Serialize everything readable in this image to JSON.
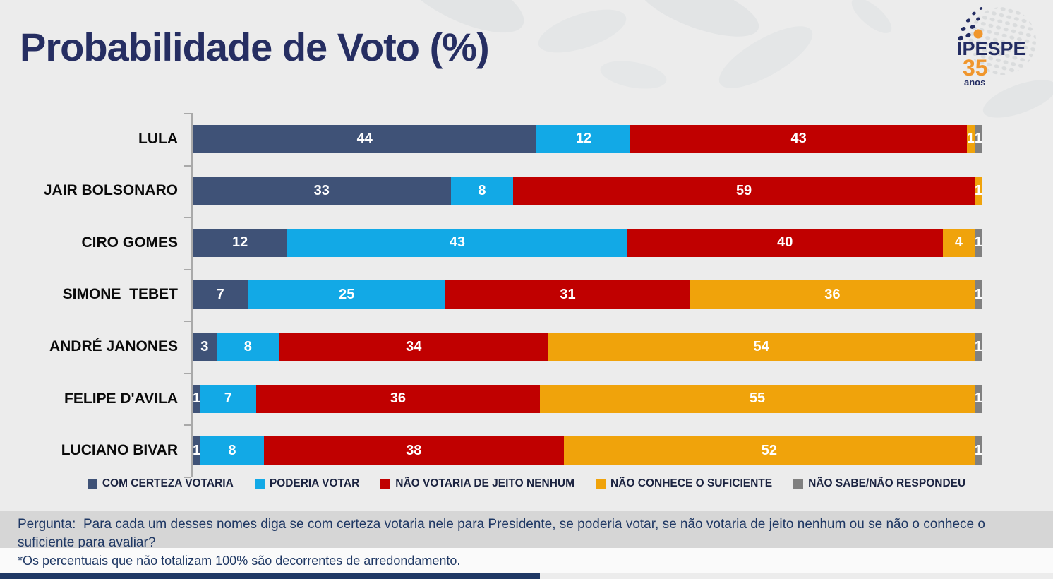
{
  "title": "Probabilidade de Voto (%)",
  "logo": {
    "name": "IPESPE",
    "years": "35",
    "anos_label": "anos"
  },
  "colors": {
    "certeza": "#3F5277",
    "poderia": "#12A9E6",
    "nao_votaria": "#C00000",
    "nao_conhece": "#F0A30B",
    "nao_sabe": "#808080",
    "title_navy": "#262E62",
    "text_navy": "#1F3864",
    "page_bg": "#ECECEC",
    "question_band_bg": "#D6D6D6"
  },
  "legend": [
    {
      "label": "COM CERTEZA VOTARIA",
      "color": "#3F5277"
    },
    {
      "label": "PODERIA VOTAR",
      "color": "#12A9E6"
    },
    {
      "label": "NÃO VOTARIA DE JEITO NENHUM",
      "color": "#C00000"
    },
    {
      "label": "NÃO CONHECE O SUFICIENTE",
      "color": "#F0A30B"
    },
    {
      "label": "NÃO SABE/NÃO RESPONDEU",
      "color": "#808080"
    }
  ],
  "chart_data": {
    "type": "bar",
    "orientation": "horizontal",
    "stacked": true,
    "title": "Probabilidade de Voto (%)",
    "xlim": [
      0,
      100
    ],
    "grid": false,
    "legend_position": "bottom",
    "categories": [
      "LULA",
      "JAIR BOLSONARO",
      "CIRO GOMES",
      "SIMONE  TEBET",
      "ANDRÉ JANONES",
      "FELIPE D'AVILA",
      "LUCIANO BIVAR"
    ],
    "series": [
      {
        "name": "COM CERTEZA VOTARIA",
        "color": "#3F5277",
        "values": [
          44,
          33,
          12,
          7,
          3,
          1,
          1
        ]
      },
      {
        "name": "PODERIA VOTAR",
        "color": "#12A9E6",
        "values": [
          12,
          8,
          43,
          25,
          8,
          7,
          8
        ]
      },
      {
        "name": "NÃO VOTARIA DE JEITO NENHUM",
        "color": "#C00000",
        "values": [
          43,
          59,
          40,
          31,
          34,
          36,
          38
        ]
      },
      {
        "name": "NÃO CONHECE O SUFICIENTE",
        "color": "#F0A30B",
        "values": [
          1,
          1,
          4,
          36,
          54,
          55,
          52
        ]
      },
      {
        "name": "NÃO SABE/NÃO RESPONDEU",
        "color": "#808080",
        "values": [
          1,
          0,
          1,
          1,
          1,
          1,
          1
        ]
      }
    ]
  },
  "question": "Pergunta:  Para cada um desses nomes diga se com certeza votaria nele para Presidente, se poderia votar, se não votaria de jeito nenhum ou se não o conhece o suficiente para avaliar?",
  "footnote": "*Os percentuais que não totalizam 100% são decorrentes de arredondamento."
}
